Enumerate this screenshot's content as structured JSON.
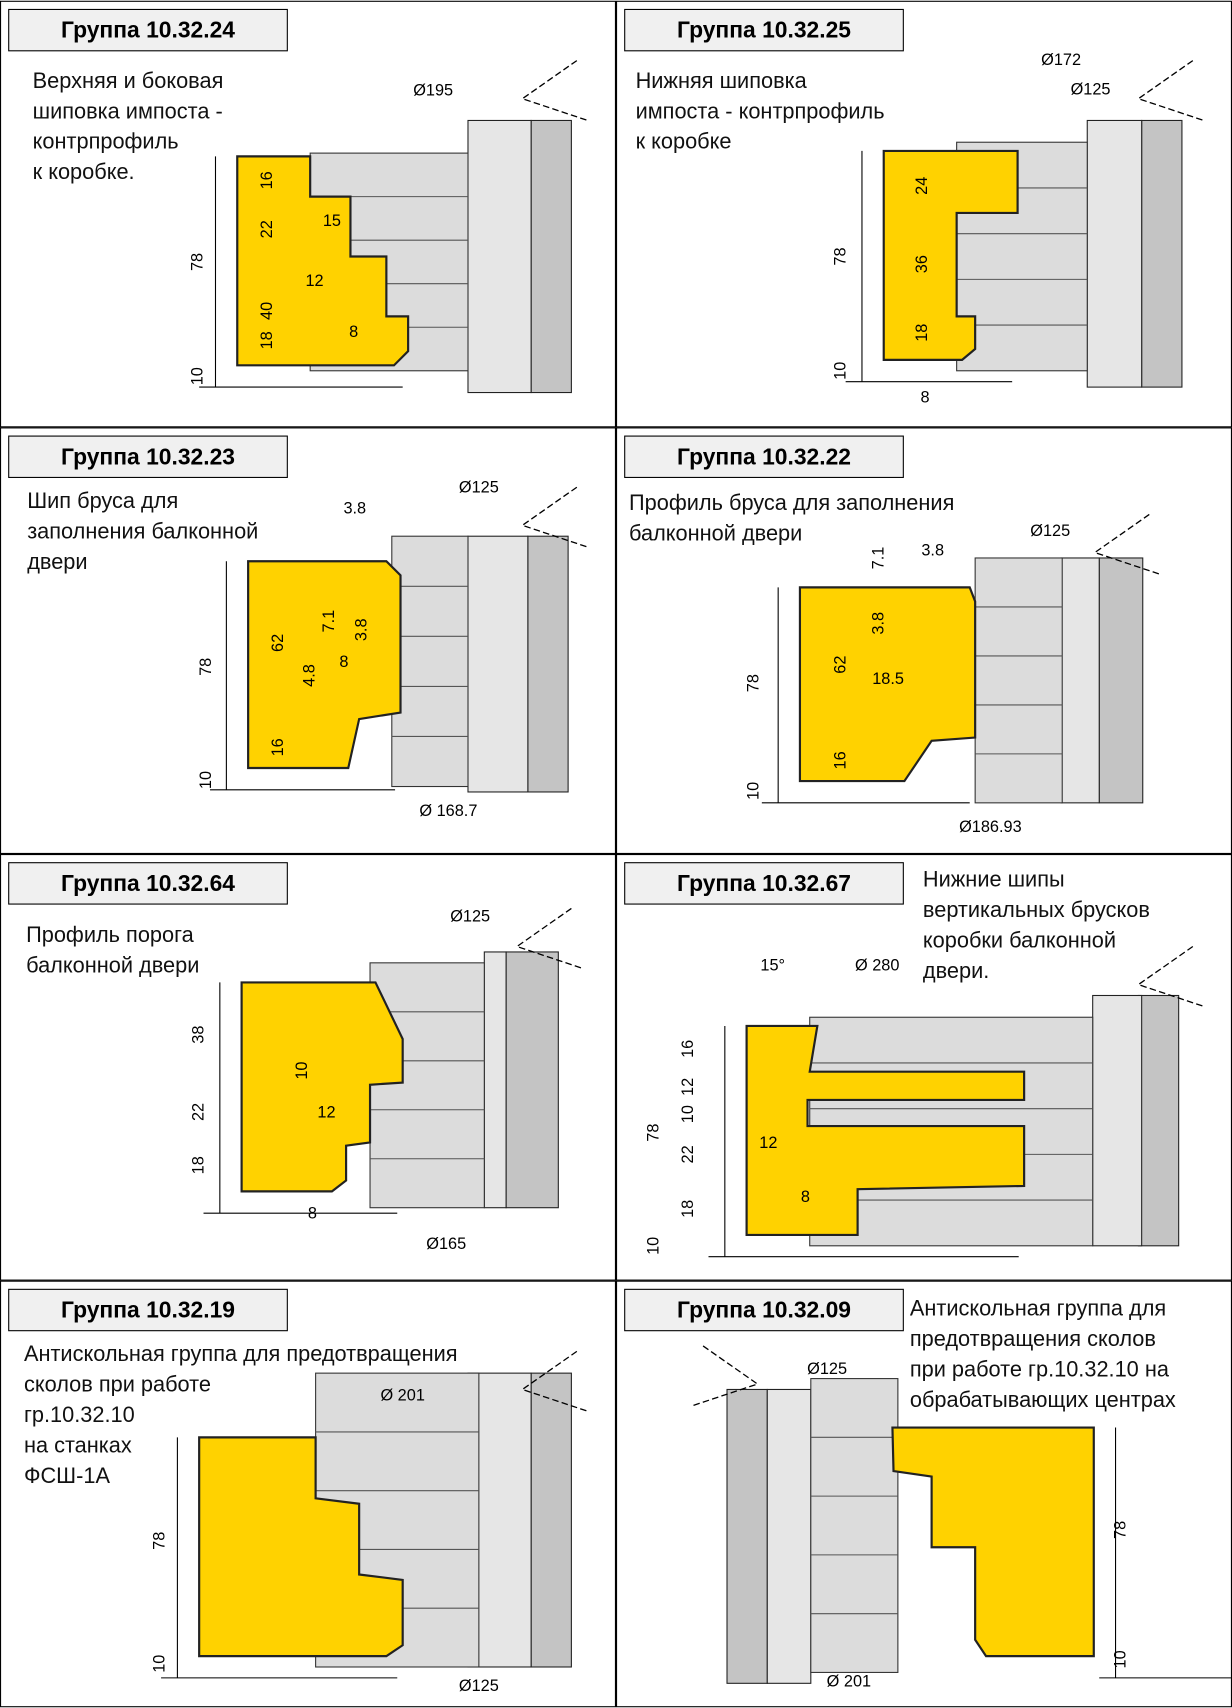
{
  "panels": [
    {
      "title": "Группа 10.32.24",
      "description": [
        "Верхняя и боковая",
        "шиповка импоста -",
        "контрпрофиль",
        "к коробке."
      ],
      "dims": [
        "Ø195",
        "16",
        "22",
        "15",
        "12",
        "78",
        "18",
        "40",
        "8",
        "10"
      ]
    },
    {
      "title": "Группа 10.32.25",
      "description": [
        "Нижняя шиповка",
        "импоста - контрпрофиль",
        "к коробке"
      ],
      "dims": [
        "Ø172",
        "Ø125",
        "24",
        "36",
        "78",
        "18",
        "10",
        "8"
      ]
    },
    {
      "title": "Группа 10.32.23",
      "description": [
        "Шип бруса для",
        "заполнения балконной",
        "двери"
      ],
      "dims": [
        "3.8",
        "Ø125",
        "7.1",
        "3.8",
        "62",
        "78",
        "4.8",
        "8",
        "16",
        "10",
        "Ø 168.7"
      ]
    },
    {
      "title": "Группа 10.32.22",
      "description": [
        "Профиль бруса для заполнения",
        "балконной двери"
      ],
      "dims": [
        "7.1",
        "3.8",
        "Ø125",
        "3.8",
        "62",
        "78",
        "18.5",
        "16",
        "10",
        "Ø186.93"
      ]
    },
    {
      "title": "Группа 10.32.64",
      "description": [
        "Профиль порога",
        "балконной двери"
      ],
      "dims": [
        "Ø125",
        "38",
        "10",
        "22",
        "12",
        "18",
        "8",
        "Ø165"
      ]
    },
    {
      "title": "Группа 10.32.67",
      "description": [
        "Нижние шипы",
        "вертикальных брусков",
        "коробки балконной",
        "двери."
      ],
      "dims": [
        "15°",
        "Ø 280",
        "16",
        "12",
        "10",
        "78",
        "22",
        "12",
        "18",
        "8",
        "10"
      ]
    },
    {
      "title": "Группа 10.32.19",
      "description": [
        "Антискольная группа для предотвращения",
        "сколов при работе",
        "гр.10.32.10",
        "на станках",
        "ФСШ-1А"
      ],
      "dims": [
        "Ø 201",
        "78",
        "10",
        "Ø125"
      ]
    },
    {
      "title": "Группа 10.32.09",
      "description": [
        "Антискольная группа для",
        "предотвращения сколов",
        "при работе гр.10.32.10 на",
        "обрабатывающих центрах"
      ],
      "dims": [
        "Ø125",
        "78",
        "10",
        "Ø 201"
      ]
    }
  ]
}
